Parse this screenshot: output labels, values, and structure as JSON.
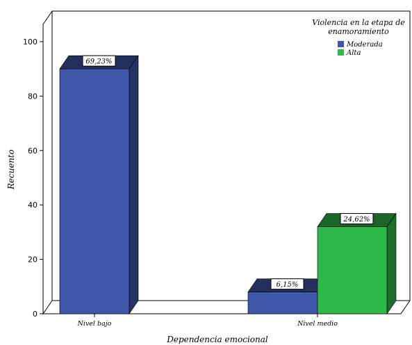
{
  "chart_data": {
    "type": "bar",
    "style": "3d-clustered",
    "xlabel": "Dependencia emocional",
    "ylabel": "Recuento",
    "ylim": [
      0,
      105
    ],
    "yticks": [
      0,
      20,
      40,
      60,
      80,
      100
    ],
    "categories": [
      "Nivel bajo",
      "Nivel medio"
    ],
    "series": [
      {
        "name": "Moderada",
        "color": "#3f57a8",
        "values": [
          90,
          8
        ],
        "labels": [
          "69,23%",
          "6,15%"
        ]
      },
      {
        "name": "Alta",
        "color": "#2fb84a",
        "values": [
          0,
          32
        ],
        "labels": [
          "",
          "24,62%"
        ]
      }
    ],
    "legend": {
      "title_line1": "Violencia en la etapa de",
      "title_line2": "enamoramiento",
      "position": "top-right"
    },
    "grid": false
  }
}
